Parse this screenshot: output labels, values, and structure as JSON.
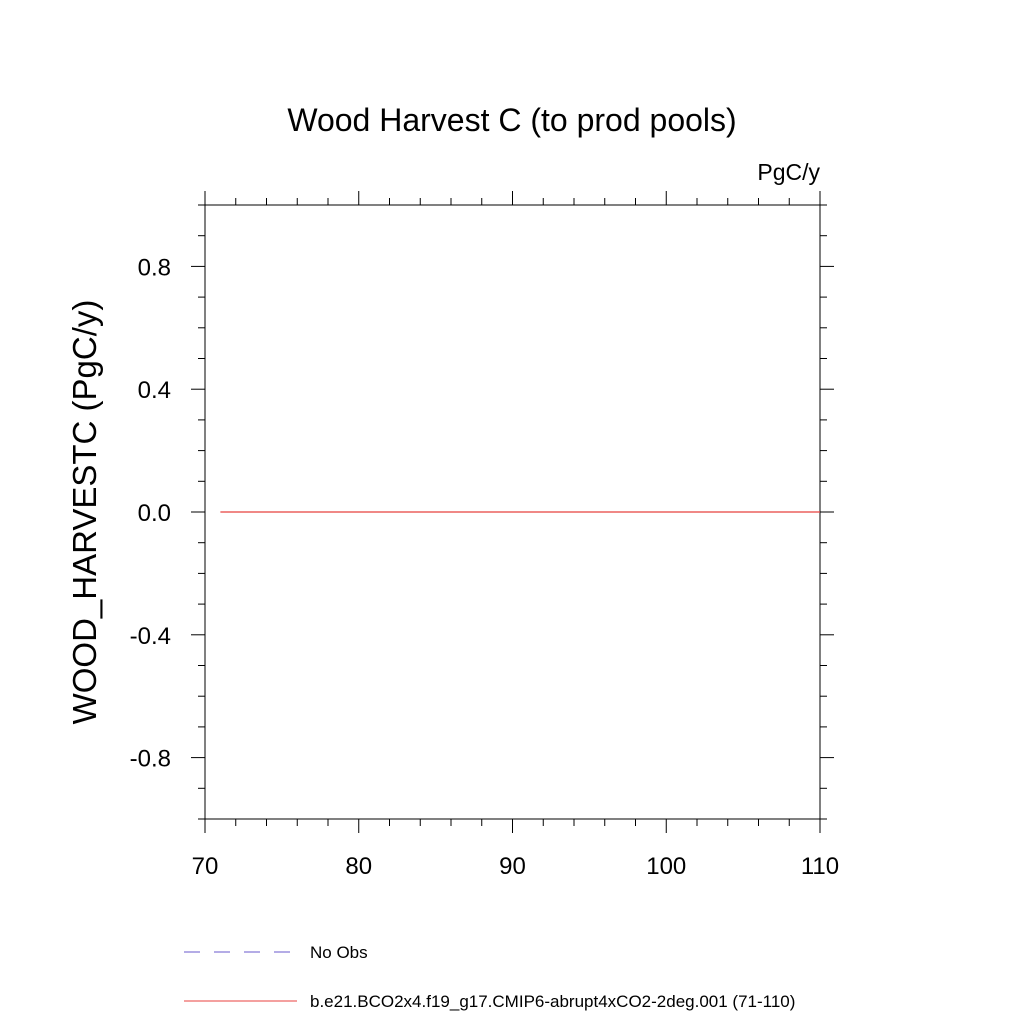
{
  "chart_data": {
    "type": "line",
    "title": "Wood Harvest C (to prod pools)",
    "units_label": "PgC/y",
    "xlabel": "",
    "ylabel": "WOOD_HARVESTC  (PgC/y)",
    "xlim": [
      70,
      110
    ],
    "ylim": [
      -1.0,
      1.0
    ],
    "x_ticks": [
      70,
      80,
      90,
      100,
      110
    ],
    "x_tick_labels": [
      "70",
      "80",
      "90",
      "100",
      "110"
    ],
    "y_ticks": [
      0.8,
      0.4,
      0.0,
      -0.4,
      -0.8
    ],
    "y_tick_labels": [
      "0.8",
      "0.4",
      "0.0",
      "-0.4",
      "-0.8"
    ],
    "grid": false,
    "legend_position": "bottom",
    "series": [
      {
        "name": "No Obs",
        "color": "#6a5acd",
        "dash": "dashed",
        "x": [],
        "y": []
      },
      {
        "name": "b.e21.BCO2x4.f19_g17.CMIP6-abrupt4xCO2-2deg.001 (71-110)",
        "color": "#e8413f",
        "dash": "solid",
        "x": [
          71,
          110
        ],
        "y": [
          0.0,
          0.0
        ]
      }
    ]
  }
}
